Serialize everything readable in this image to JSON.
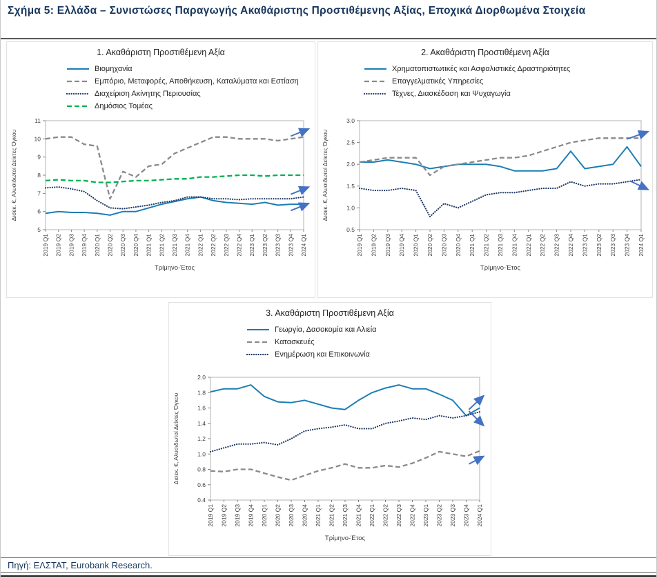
{
  "page": {
    "title": "Σχήμα 5: Ελλάδα – Συνιστώσες Παραγωγής Ακαθάριστης Προστιθέμενης Αξίας, Εποχικά Διορθωμένα Στοιχεία",
    "source": "Πηγή: ΕΛΣΤΑΤ, Eurobank Research."
  },
  "colors": {
    "blue": "#1b7db5",
    "gray": "#8a8a8a",
    "navy": "#1f3864",
    "green": "#00b050",
    "arrow": "#4472c4",
    "axis_text": "#404040",
    "title_navy": "#17365d"
  },
  "chart_data": [
    {
      "type": "line",
      "title": "1. Ακαθάριστη Προστιθέμενη Αξία",
      "xlabel": "Τρίμηνο-Έτος",
      "ylabel": "Δισεκ. €, Αλυσιδωτοί Δείκτες Όγκου",
      "ylim": [
        5,
        11
      ],
      "y_ticks": [
        "5",
        "6",
        "7",
        "8",
        "9",
        "10",
        "11"
      ],
      "grid": false,
      "legend_position": "top-left",
      "categories": [
        "2019 Q1",
        "2019 Q2",
        "2019 Q3",
        "2019 Q4",
        "2020 Q1",
        "2020 Q2",
        "2020 Q3",
        "2020 Q4",
        "2021 Q1",
        "2021 Q2",
        "2021 Q3",
        "2021 Q4",
        "2022 Q1",
        "2022 Q2",
        "2022 Q3",
        "2022 Q4",
        "2023 Q1",
        "2023 Q2",
        "2023 Q3",
        "2023 Q4",
        "2024 Q1"
      ],
      "series": [
        {
          "name": "Βιομηχανία",
          "color": "#1b7db5",
          "style": "solid",
          "values": [
            5.9,
            6.0,
            5.95,
            5.95,
            5.9,
            5.8,
            6.0,
            6.0,
            6.2,
            6.4,
            6.55,
            6.7,
            6.8,
            6.6,
            6.5,
            6.45,
            6.4,
            6.5,
            6.35,
            6.4,
            6.4
          ]
        },
        {
          "name": "Εμπόριο, Μεταφορές, Αποθήκευση, Καταλύματα και Εστίαση",
          "color": "#8a8a8a",
          "style": "dashed",
          "values": [
            10.0,
            10.1,
            10.1,
            9.7,
            9.6,
            6.7,
            8.2,
            7.9,
            8.5,
            8.6,
            9.2,
            9.5,
            9.8,
            10.1,
            10.1,
            10.0,
            10.0,
            10.0,
            9.9,
            10.0,
            10.1
          ]
        },
        {
          "name": "Διαχείριση Ακίνητης Περιουσίας",
          "color": "#1f3864",
          "style": "dotted",
          "values": [
            7.3,
            7.35,
            7.25,
            7.1,
            6.6,
            6.2,
            6.15,
            6.25,
            6.35,
            6.5,
            6.6,
            6.8,
            6.8,
            6.7,
            6.7,
            6.65,
            6.7,
            6.7,
            6.7,
            6.7,
            6.8
          ]
        },
        {
          "name": "Δημόσιος Τομέας",
          "color": "#00b050",
          "style": "dashed",
          "values": [
            7.7,
            7.75,
            7.7,
            7.7,
            7.6,
            7.6,
            7.65,
            7.7,
            7.7,
            7.75,
            7.8,
            7.8,
            7.9,
            7.9,
            7.95,
            8.0,
            8.0,
            7.95,
            8.0,
            8.0,
            8.0
          ]
        }
      ],
      "annotations": [
        {
          "x1": 19.0,
          "y1": 10.15,
          "x2": 20.4,
          "y2": 10.55
        },
        {
          "x1": 19.0,
          "y1": 6.95,
          "x2": 20.4,
          "y2": 7.35
        },
        {
          "x1": 19.0,
          "y1": 6.05,
          "x2": 20.4,
          "y2": 6.45
        }
      ]
    },
    {
      "type": "line",
      "title": "2. Ακαθάριστη Προστιθέμενη Αξία",
      "xlabel": "Τρίμηνο-Έτος",
      "ylabel": "Δισεκ. €, Αλυσιδωτοί Δείκτες Όγκου",
      "ylim": [
        0.5,
        3.0
      ],
      "y_ticks": [
        "0.5",
        "1.0",
        "1.5",
        "2.0",
        "2.5",
        "3.0"
      ],
      "grid": false,
      "legend_position": "top-left",
      "categories": [
        "2019 Q1",
        "2019 Q2",
        "2019 Q3",
        "2019 Q4",
        "2020 Q1",
        "2020 Q2",
        "2020 Q3",
        "2020 Q4",
        "2021 Q1",
        "2021 Q2",
        "2021 Q3",
        "2021 Q4",
        "2022 Q1",
        "2022 Q2",
        "2022 Q3",
        "2022 Q4",
        "2023 Q1",
        "2023 Q2",
        "2023 Q3",
        "2023 Q4",
        "2024 Q1"
      ],
      "series": [
        {
          "name": "Χρηματοπιστωτικές και Ασφαλιστικές Δραστηριότητες",
          "color": "#1b7db5",
          "style": "solid",
          "values": [
            2.05,
            2.05,
            2.1,
            2.05,
            2.0,
            1.9,
            1.95,
            2.0,
            2.0,
            2.0,
            1.95,
            1.85,
            1.85,
            1.85,
            1.9,
            2.3,
            1.9,
            1.95,
            2.0,
            2.4,
            1.95
          ]
        },
        {
          "name": "Επαγγελματικές Υπηρεσίες",
          "color": "#8a8a8a",
          "style": "dashed",
          "values": [
            2.05,
            2.1,
            2.15,
            2.15,
            2.15,
            1.75,
            1.95,
            2.0,
            2.05,
            2.1,
            2.15,
            2.15,
            2.2,
            2.3,
            2.4,
            2.5,
            2.55,
            2.6,
            2.6,
            2.6,
            2.6
          ]
        },
        {
          "name": "Τέχνες, Διασκέδαση και Ψυχαγωγία",
          "color": "#1f3864",
          "style": "dotted",
          "values": [
            1.45,
            1.4,
            1.4,
            1.45,
            1.4,
            0.8,
            1.1,
            1.0,
            1.15,
            1.3,
            1.35,
            1.35,
            1.4,
            1.45,
            1.45,
            1.6,
            1.5,
            1.55,
            1.55,
            1.6,
            1.65
          ]
        }
      ],
      "annotations": [
        {
          "x1": 19.0,
          "y1": 2.58,
          "x2": 20.5,
          "y2": 2.75
        },
        {
          "x1": 19.2,
          "y1": 1.62,
          "x2": 20.5,
          "y2": 1.42
        }
      ]
    },
    {
      "type": "line",
      "title": "3. Ακαθάριστη Προστιθέμενη Αξία",
      "xlabel": "Τρίμηνο-Έτος",
      "ylabel": "Δισεκ. €, Αλυσιδωτοί Δείκτες Όγκου",
      "ylim": [
        0.4,
        2.0
      ],
      "y_ticks": [
        "0.4",
        "0.6",
        "0.8",
        "1.0",
        "1.2",
        "1.4",
        "1.6",
        "1.8",
        "2.0"
      ],
      "grid": false,
      "legend_position": "top-left",
      "categories": [
        "2019 Q1",
        "2019 Q2",
        "2019 Q3",
        "2019 Q4",
        "2020 Q1",
        "2020 Q2",
        "2020 Q3",
        "2020 Q4",
        "2021 Q1",
        "2021 Q2",
        "2021 Q3",
        "2021 Q4",
        "2022 Q1",
        "2022 Q2",
        "2022 Q3",
        "2022 Q4",
        "2023 Q1",
        "2023 Q2",
        "2023 Q3",
        "2023 Q4",
        "2024 Q1"
      ],
      "series": [
        {
          "name": "Γεωργία, Δασοκομία και Αλιεία",
          "color": "#1b7db5",
          "style": "solid",
          "values": [
            1.81,
            1.85,
            1.85,
            1.9,
            1.75,
            1.68,
            1.67,
            1.7,
            1.65,
            1.6,
            1.58,
            1.7,
            1.8,
            1.86,
            1.9,
            1.85,
            1.85,
            1.78,
            1.7,
            1.5,
            1.6
          ]
        },
        {
          "name": "Κατασκευές",
          "color": "#8a8a8a",
          "style": "dashed",
          "values": [
            0.78,
            0.77,
            0.8,
            0.8,
            0.75,
            0.7,
            0.66,
            0.72,
            0.78,
            0.82,
            0.87,
            0.82,
            0.82,
            0.85,
            0.83,
            0.88,
            0.95,
            1.03,
            1.0,
            0.97,
            1.04
          ]
        },
        {
          "name": "Ενημέρωση και Επικοινωνία",
          "color": "#1f3864",
          "style": "dotted",
          "values": [
            1.03,
            1.08,
            1.13,
            1.13,
            1.15,
            1.12,
            1.2,
            1.3,
            1.33,
            1.35,
            1.38,
            1.33,
            1.33,
            1.4,
            1.43,
            1.47,
            1.45,
            1.5,
            1.47,
            1.5,
            1.55
          ]
        }
      ],
      "annotations": [
        {
          "x1": 19.2,
          "y1": 1.58,
          "x2": 20.3,
          "y2": 1.76
        },
        {
          "x1": 19.2,
          "y1": 1.56,
          "x2": 20.3,
          "y2": 1.37
        },
        {
          "x1": 19.2,
          "y1": 0.87,
          "x2": 20.3,
          "y2": 0.97
        }
      ]
    }
  ]
}
